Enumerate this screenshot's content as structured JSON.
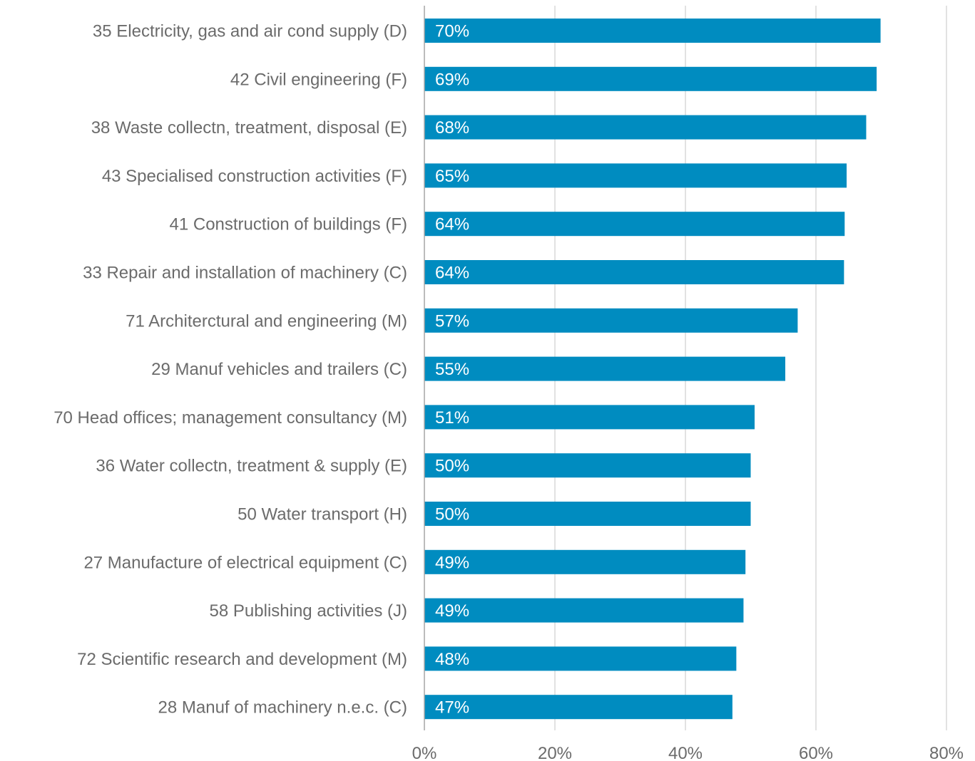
{
  "chart_data": {
    "type": "bar",
    "orientation": "horizontal",
    "categories": [
      "35  Electricity, gas and air cond supply (D)",
      "42  Civil engineering (F)",
      "38  Waste collectn, treatment, disposal (E)",
      "43  Specialised construction activities (F)",
      "41  Construction of buildings (F)",
      "33  Repair and installation of machinery (C)",
      "71  Architerctural and engineering (M)",
      "29  Manuf vehicles and trailers (C)",
      "70  Head offices; management consultancy (M)",
      "36  Water collectn, treatment & supply (E)",
      "50  Water transport (H)",
      "27  Manufacture of electrical equipment (C)",
      "58  Publishing activities (J)",
      "72  Scientific research and development (M)",
      "28  Manuf of machinery n.e.c. (C)"
    ],
    "values": [
      69.9,
      69.3,
      67.7,
      64.7,
      64.4,
      64.3,
      57.2,
      55.3,
      50.6,
      50.0,
      50.0,
      49.2,
      48.9,
      47.8,
      47.2
    ],
    "data_labels": [
      "70%",
      "69%",
      "68%",
      "65%",
      "64%",
      "64%",
      "57%",
      "55%",
      "51%",
      "50%",
      "50%",
      "49%",
      "49%",
      "48%",
      "47%"
    ],
    "xlim": [
      0,
      80
    ],
    "x_ticks": [
      0,
      20,
      40,
      60,
      80
    ],
    "x_tick_labels": [
      "0%",
      "20%",
      "40%",
      "60%",
      "80%"
    ],
    "grid": true,
    "bar_color": "#008cc0",
    "title": "",
    "xlabel": "",
    "ylabel": ""
  }
}
